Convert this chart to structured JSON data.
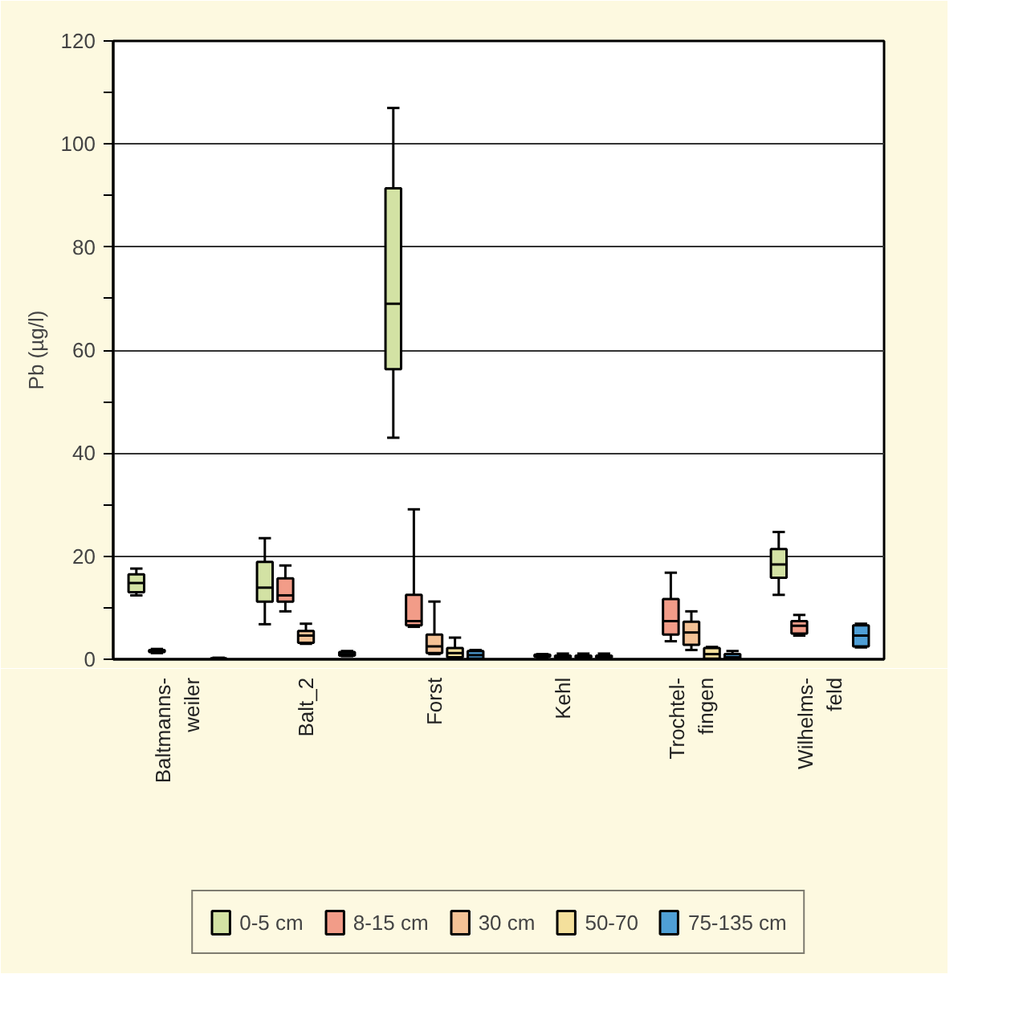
{
  "chart_data": {
    "type": "box",
    "ylabel": "Pb (µg/l)",
    "categories": [
      "Baltmanns-\nweiler",
      "Balt_2",
      "Forst",
      "Kehl",
      "Trochtel-\nfingen",
      "Wilhelms-\nfeld"
    ],
    "series": [
      {
        "name": "0-5 cm",
        "color": "#d3e2a4",
        "boxes": [
          {
            "low": 12.4,
            "q1": 13,
            "median": 14.8,
            "q3": 16.5,
            "high": 17.6
          },
          {
            "low": 6.8,
            "q1": 11.2,
            "median": 13.9,
            "q3": 18.9,
            "high": 23.5
          },
          {
            "low": 43,
            "q1": 56.3,
            "median": 69,
            "q3": 91.4,
            "high": 107
          },
          null,
          null,
          {
            "low": 12.5,
            "q1": 15.8,
            "median": 18.4,
            "q3": 21.4,
            "high": 24.7
          }
        ]
      },
      {
        "name": "8-15 cm",
        "color": "#f29c88",
        "boxes": [
          {
            "low": 1.2,
            "q1": 1.4,
            "median": 1.6,
            "q3": 1.8,
            "high": 2.0
          },
          {
            "low": 9.3,
            "q1": 11.2,
            "median": 12.4,
            "q3": 15.7,
            "high": 18.2
          },
          {
            "low": 6.3,
            "q1": 6.6,
            "median": 7.4,
            "q3": 12.5,
            "high": 29.1
          },
          {
            "low": 0.3,
            "q1": 0.5,
            "median": 0.7,
            "q3": 0.9,
            "high": 1.0
          },
          {
            "low": 3.5,
            "q1": 4.8,
            "median": 7.4,
            "q3": 11.7,
            "high": 16.8
          },
          {
            "low": 4.6,
            "q1": 5.0,
            "median": 6.5,
            "q3": 7.4,
            "high": 8.6
          }
        ]
      },
      {
        "name": "30 cm",
        "color": "#f4c296",
        "boxes": [
          null,
          {
            "low": 3.0,
            "q1": 3.2,
            "median": 4.6,
            "q3": 5.5,
            "high": 6.9
          },
          {
            "low": 1.0,
            "q1": 1.2,
            "median": 2.5,
            "q3": 4.8,
            "high": 11.2
          },
          {
            "low": 0,
            "q1": 0.3,
            "median": 0.5,
            "q3": 0.7,
            "high": 1.1
          },
          {
            "low": 1.8,
            "q1": 2.8,
            "median": 5.2,
            "q3": 7.3,
            "high": 9.3
          },
          null
        ]
      },
      {
        "name": "50-70",
        "color": "#f4e09c",
        "boxes": [
          null,
          null,
          {
            "low": 0.3,
            "q1": 0.4,
            "median": 1.2,
            "q3": 2.2,
            "high": 4.2
          },
          {
            "low": 0,
            "q1": 0.3,
            "median": 0.5,
            "q3": 0.7,
            "high": 1.1
          },
          {
            "low": 0,
            "q1": 0.1,
            "median": 1.0,
            "q3": 2.2,
            "high": 2.4
          },
          null
        ]
      },
      {
        "name": "75-135 cm",
        "color": "#4f9fd6",
        "boxes": [
          {
            "low": 0,
            "q1": 0,
            "median": 0.1,
            "q3": 0.2,
            "high": 0.3
          },
          {
            "low": 0.6,
            "q1": 0.7,
            "median": 1.0,
            "q3": 1.4,
            "high": 1.6
          },
          {
            "low": 0,
            "q1": 0.1,
            "median": 0.8,
            "q3": 1.6,
            "high": 1.8
          },
          {
            "low": 0,
            "q1": 0.3,
            "median": 0.5,
            "q3": 0.7,
            "high": 1.1
          },
          {
            "low": 0,
            "q1": 0.1,
            "median": 0.4,
            "q3": 1.0,
            "high": 1.6
          },
          {
            "low": 2.3,
            "q1": 2.5,
            "median": 4.6,
            "q3": 6.6,
            "high": 6.9
          }
        ]
      }
    ],
    "ylim": [
      0,
      120
    ],
    "yticks": [
      0,
      {
        "value": 10,
        "label": null
      },
      20,
      {
        "value": 30,
        "label": null
      },
      40,
      {
        "value": 50,
        "label": null
      },
      60,
      {
        "value": 70,
        "label": null
      },
      80,
      {
        "value": 90,
        "label": null
      },
      100,
      {
        "value": 110,
        "label": null
      },
      120
    ],
    "grid": "y",
    "legend": "bottom"
  }
}
